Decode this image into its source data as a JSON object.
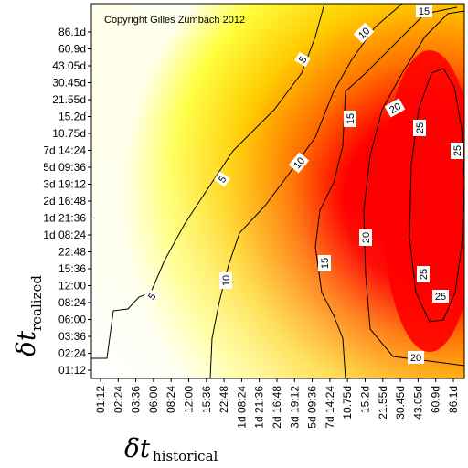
{
  "chart_data": {
    "type": "heatmap",
    "title": "",
    "annotation": "Copyright Gilles Zumbach 2012",
    "xlabel_symbol": "δt",
    "xlabel_subscript": "historical",
    "ylabel_symbol": "δt",
    "ylabel_subscript": "realized",
    "x_ticks": [
      "01:12",
      "02:24",
      "03:36",
      "06:00",
      "08:24",
      "12:00",
      "15:36",
      "22:48",
      "1d 08:24",
      "1d 21:36",
      "2d 16:48",
      "3d 19:12",
      "5d 09:36",
      "7d 14:24",
      "10.75d",
      "15.2d",
      "21.55d",
      "30.45d",
      "43.05d",
      "60.9d",
      "86.1d"
    ],
    "y_ticks": [
      "01:12",
      "02:24",
      "03:36",
      "06:00",
      "08:24",
      "12:00",
      "15:36",
      "22:48",
      "1d 08:24",
      "1d 21:36",
      "2d 16:48",
      "3d 19:12",
      "5d 09:36",
      "7d 14:24",
      "10.75d",
      "15.2d",
      "21.55d",
      "30.45d",
      "43.05d",
      "60.9d",
      "86.1d"
    ],
    "colorscale": [
      "#fffff0",
      "#ffff00",
      "#ff8000",
      "#ff0000"
    ],
    "contour_levels": [
      5,
      10,
      15,
      20,
      25
    ],
    "contour_label_texts": [
      "5",
      "5",
      "5",
      "10",
      "10",
      "10",
      "15",
      "15",
      "15",
      "20",
      "20",
      "20",
      "25",
      "25",
      "25",
      "25"
    ],
    "grid": false
  }
}
